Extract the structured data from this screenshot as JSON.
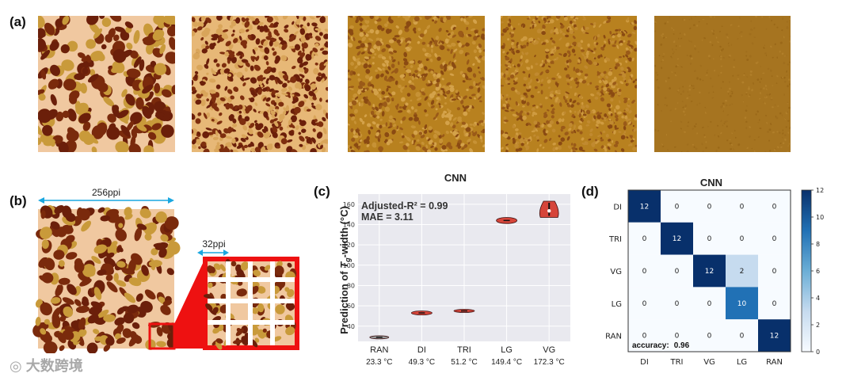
{
  "colors": {
    "afm_dark": "#6b1f0a",
    "afm_mid": "#c98d2a",
    "afm_light": "#f0c8a0",
    "afm_flat": "#a8741e",
    "arrow_blue": "#1aa7e0",
    "zoom_red": "#ee1111",
    "violin_red": "#d6453a",
    "plot_bg": "#e9e9ef",
    "heat_dark": "#08306b",
    "heat_mid": "#2171b5",
    "heat_light": "#c6dbef",
    "heat_empty": "#f7fbff"
  },
  "panel_a": {
    "label": "(a)",
    "images": [
      {
        "name": "afm-di",
        "style": "coarse-worm"
      },
      {
        "name": "afm-tri",
        "style": "fine-worm"
      },
      {
        "name": "afm-vg",
        "style": "granular"
      },
      {
        "name": "afm-lg",
        "style": "granular-fine"
      },
      {
        "name": "afm-ran",
        "style": "flat"
      }
    ]
  },
  "panel_b": {
    "label": "(b)",
    "full_width_label": "256ppi",
    "patch_label": "32ppi"
  },
  "chart_data": [
    {
      "type": "violin",
      "panel_label": "(c)",
      "title": "CNN",
      "ylabel": "Prediction of T_g-width (°C)",
      "ylabel_parts": {
        "prefix": "Prediction of ",
        "T": "T",
        "sub": "g",
        "suffix": "-width (°C)"
      },
      "ylim": [
        25,
        170
      ],
      "yticks": [
        40,
        60,
        80,
        100,
        120,
        140,
        160
      ],
      "annotation_r2": "Adjusted-R² = 0.99",
      "annotation_mae": "MAE = 3.11",
      "categories": [
        "RAN",
        "DI",
        "TRI",
        "LG",
        "VG"
      ],
      "true_values_label": [
        "23.3 °C",
        "49.3 °C",
        "51.2 °C",
        "149.4 °C",
        "172.3 °C"
      ],
      "predicted_values": [
        29,
        53,
        55,
        144,
        155
      ],
      "spread_values": [
        0.6,
        2.0,
        1.5,
        3.0,
        8.0
      ]
    },
    {
      "type": "heatmap",
      "panel_label": "(d)",
      "title": "CNN",
      "row_labels": [
        "DI",
        "TRI",
        "VG",
        "LG",
        "RAN"
      ],
      "col_labels": [
        "DI",
        "TRI",
        "VG",
        "LG",
        "RAN"
      ],
      "matrix": [
        [
          12,
          0,
          0,
          0,
          0
        ],
        [
          0,
          12,
          0,
          0,
          0
        ],
        [
          0,
          0,
          12,
          2,
          0
        ],
        [
          0,
          0,
          0,
          10,
          0
        ],
        [
          0,
          0,
          0,
          0,
          12
        ]
      ],
      "accuracy_label": "accuracy:",
      "accuracy_value": "0.96",
      "colorbar_ticks": [
        0,
        2,
        4,
        6,
        8,
        10,
        12
      ],
      "colorbar_range": [
        0,
        12
      ]
    }
  ],
  "watermark": "大数跨境"
}
